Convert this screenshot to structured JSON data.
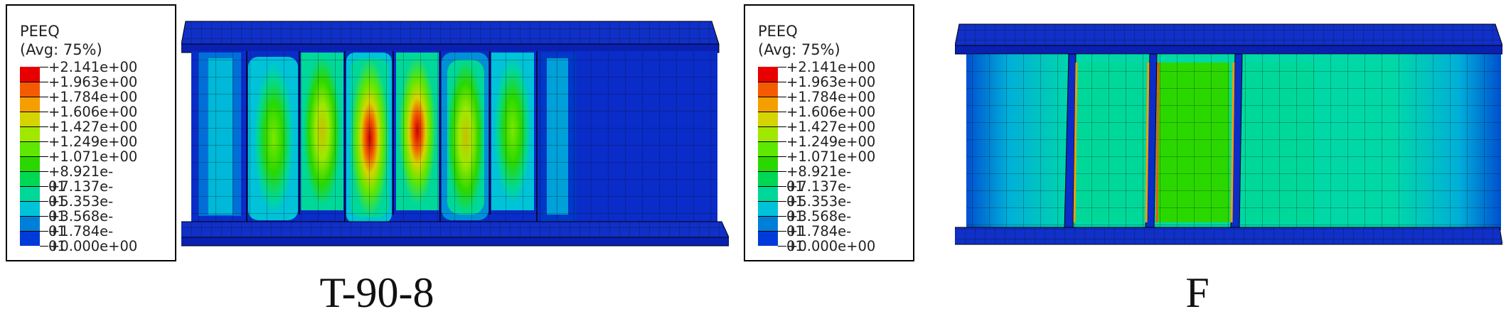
{
  "panels": [
    {
      "legend": {
        "variable": "PEEQ",
        "averaging": "(Avg: 75%)",
        "levels": [
          "+2.141e+00",
          "+1.963e+00",
          "+1.784e+00",
          "+1.606e+00",
          "+1.427e+00",
          "+1.249e+00",
          "+1.071e+00",
          "+8.921e-01",
          "+7.137e-01",
          "+5.353e-01",
          "+3.568e-01",
          "+1.784e-01",
          "+0.000e+00"
        ],
        "colors": [
          "#e80000",
          "#f45b00",
          "#f49e00",
          "#d6d400",
          "#a0e800",
          "#5ee800",
          "#2ad800",
          "#00d853",
          "#00d899",
          "#00c2d8",
          "#007fd8",
          "#003ad8",
          "#0000d8"
        ]
      },
      "caption": "T-90-8"
    },
    {
      "legend": {
        "variable": "PEEQ",
        "averaging": "(Avg: 75%)",
        "levels": [
          "+2.141e+00",
          "+1.963e+00",
          "+1.784e+00",
          "+1.606e+00",
          "+1.427e+00",
          "+1.249e+00",
          "+1.071e+00",
          "+8.921e-01",
          "+7.137e-01",
          "+5.353e-01",
          "+3.568e-01",
          "+1.784e-01",
          "+0.000e+00"
        ],
        "colors": [
          "#e80000",
          "#f45b00",
          "#f49e00",
          "#d6d400",
          "#a0e800",
          "#5ee800",
          "#2ad800",
          "#00d853",
          "#00d899",
          "#00c2d8",
          "#007fd8",
          "#003ad8",
          "#0000d8"
        ]
      },
      "caption": "F"
    }
  ]
}
